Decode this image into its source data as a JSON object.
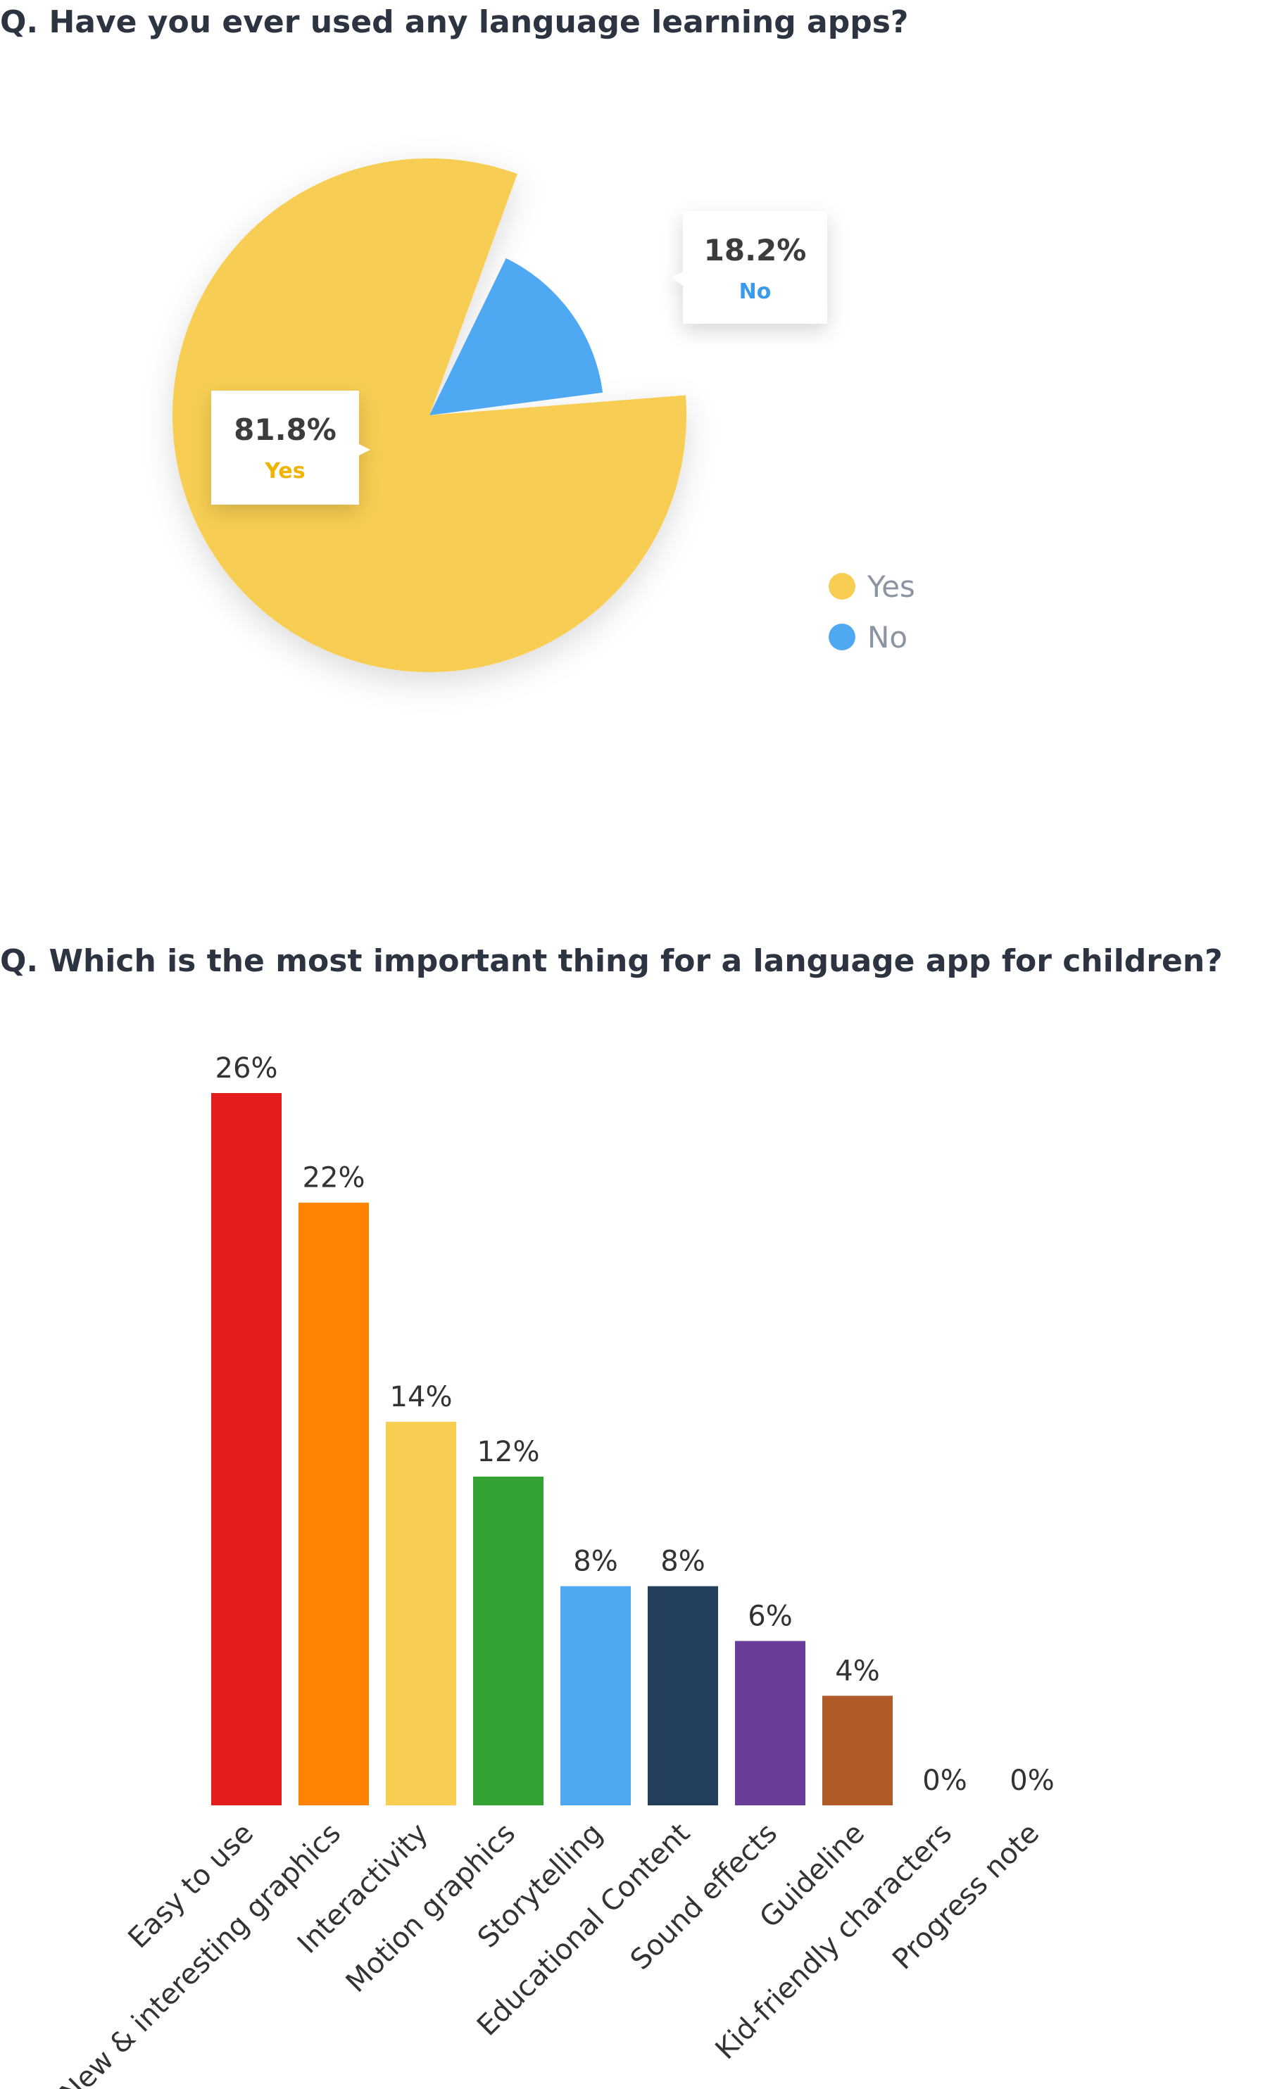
{
  "pie_question": "Q. Have you ever used any language learning apps?",
  "bar_question": "Q. Which is the most important thing for a language app for children?",
  "colors": {
    "yes": "#F7CE52",
    "no": "#4EA8F2",
    "yes_label": "#F0B400",
    "no_label": "#3B9BEA",
    "label_value": "#3c3c3c",
    "legend_text": "#8b95a1",
    "bar_value": "#333333",
    "category": "#333333"
  },
  "chart_data": [
    {
      "type": "pie",
      "title": "Q. Have you ever used any language learning apps?",
      "slices": [
        {
          "name": "Yes",
          "value": 81.8,
          "label": "81.8%",
          "color": "#F7CE52"
        },
        {
          "name": "No",
          "value": 18.2,
          "label": "18.2%",
          "color": "#4EA8F2"
        }
      ],
      "legend": {
        "position": "right",
        "entries": [
          "Yes",
          "No"
        ]
      }
    },
    {
      "type": "bar",
      "title": "Q. Which is the most important thing for a language app for children?",
      "categories": [
        "Easy to use",
        "New & interesting graphics",
        "Interactivity",
        "Motion graphics",
        "Storytelling",
        "Educational Content",
        "Sound effects",
        "Guideline",
        "Kid-friendly characters",
        "Progress note"
      ],
      "values": [
        26,
        22,
        14,
        12,
        8,
        8,
        6,
        4,
        0,
        0
      ],
      "value_labels": [
        "26%",
        "22%",
        "14%",
        "12%",
        "8%",
        "8%",
        "6%",
        "4%",
        "0%",
        "0%"
      ],
      "colors": [
        "#E31D1E",
        "#FF8200",
        "#F7CE52",
        "#35A333",
        "#4EA8F2",
        "#233F5C",
        "#6A3D9A",
        "#B05A28",
        "#cccccc",
        "#cccccc"
      ],
      "ylim": [
        0,
        26
      ],
      "grid": false,
      "xlabel": "",
      "ylabel": ""
    }
  ]
}
